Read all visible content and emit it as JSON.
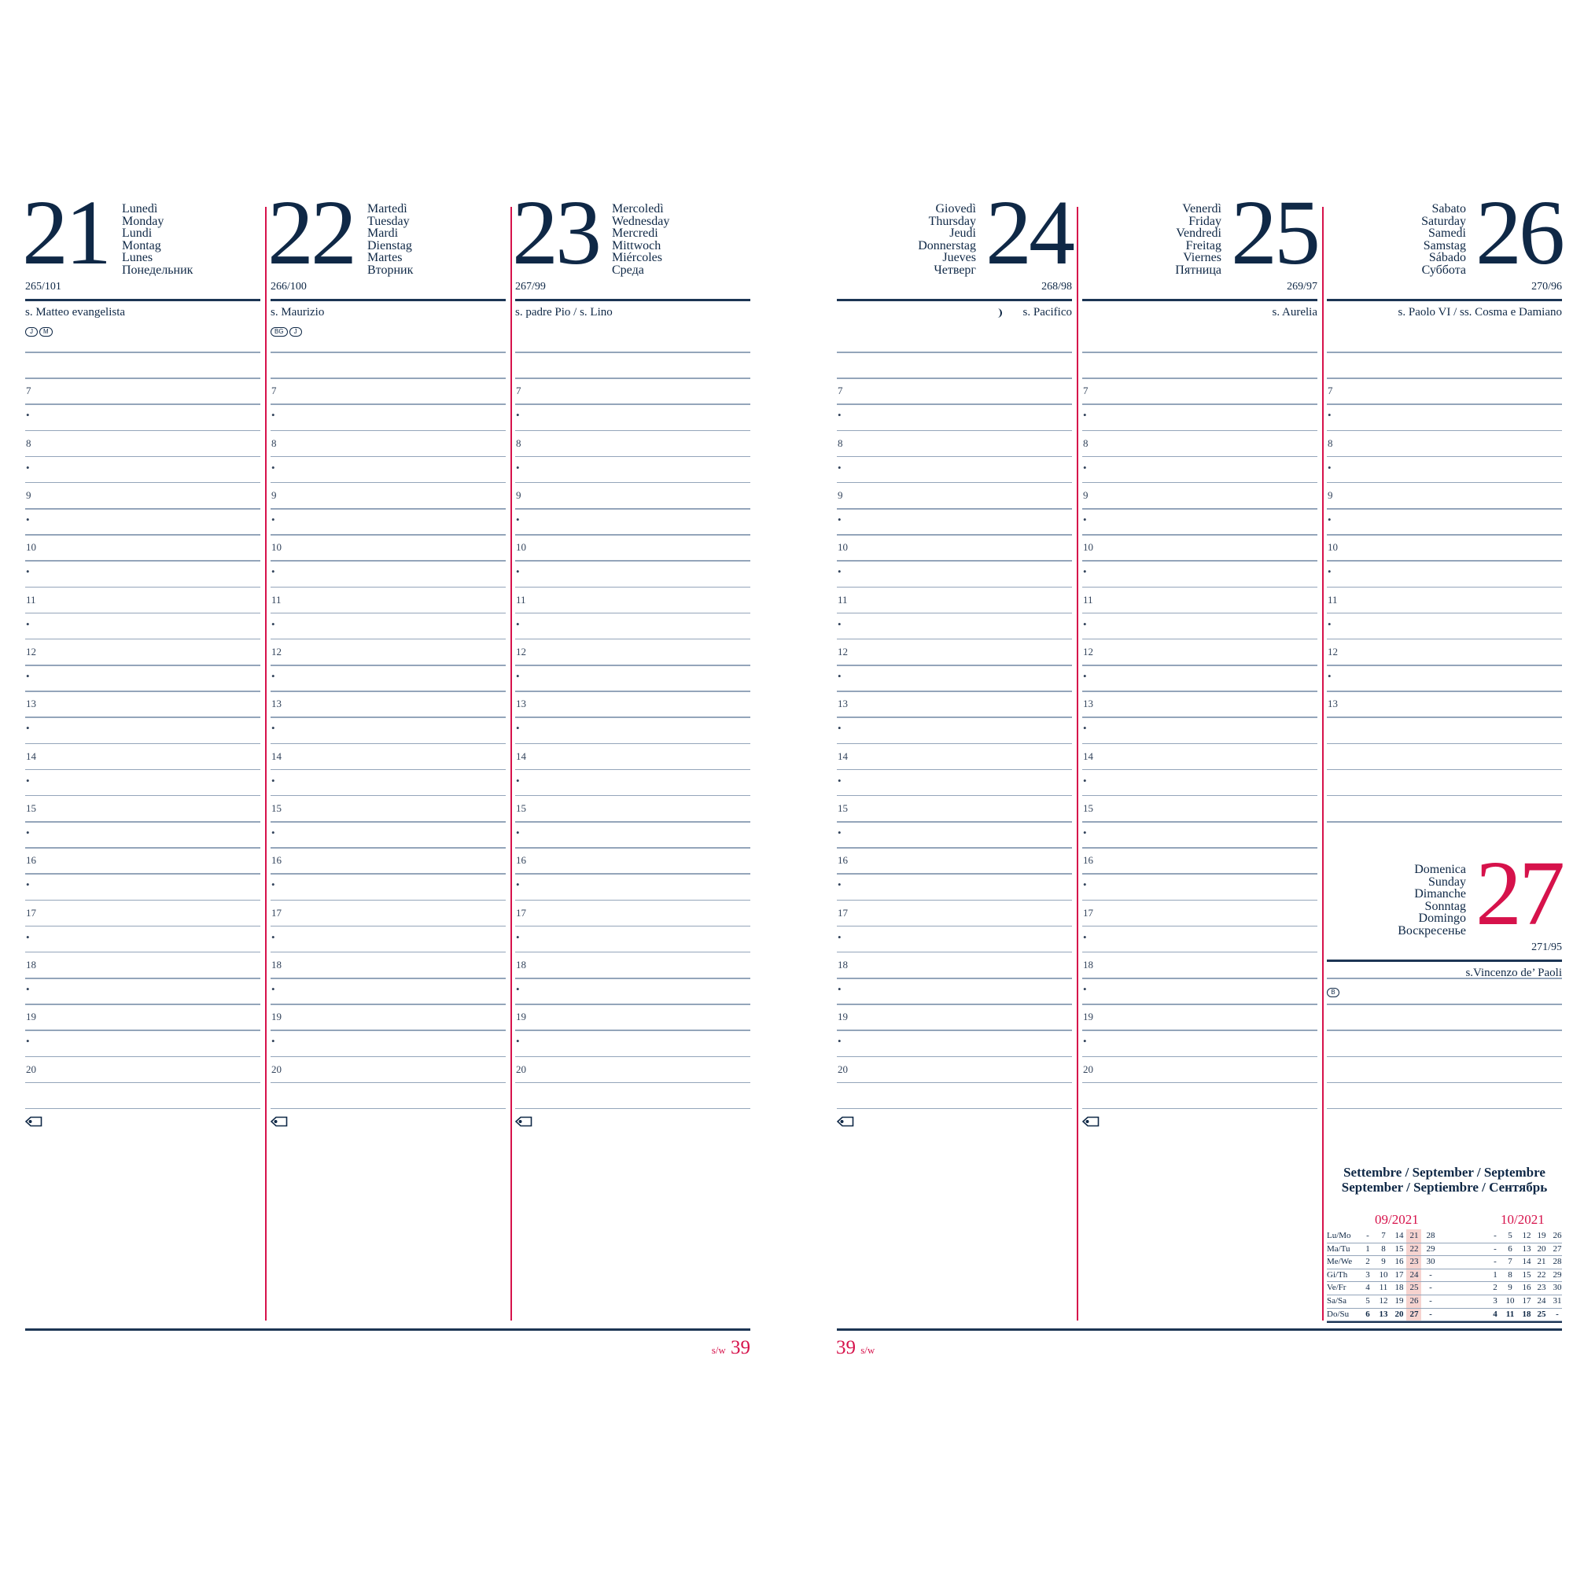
{
  "colors": {
    "navy": "#0f2846",
    "accent": "#d6124b",
    "rule": "#94a5ba",
    "highlight": "#f6d3cf"
  },
  "days": [
    {
      "num": "21",
      "names": [
        "Lunedì",
        "Monday",
        "Lundi",
        "Montag",
        "Lunes",
        "Понедельник"
      ],
      "yearday": "265/101",
      "saint": "s. Matteo evangelista",
      "badges": [
        "J",
        "M"
      ]
    },
    {
      "num": "22",
      "names": [
        "Martedì",
        "Tuesday",
        "Mardi",
        "Dienstag",
        "Martes",
        "Вторник"
      ],
      "yearday": "266/100",
      "saint": "s. Maurizio",
      "badges": [
        "BG",
        "J"
      ]
    },
    {
      "num": "23",
      "names": [
        "Mercoledì",
        "Wednesday",
        "Mercredi",
        "Mittwoch",
        "Miércoles",
        "Среда"
      ],
      "yearday": "267/99",
      "saint": "s. padre Pio / s. Lino",
      "badges": []
    },
    {
      "num": "24",
      "names": [
        "Giovedì",
        "Thursday",
        "Jeudi",
        "Donnerstag",
        "Jueves",
        "Четверг"
      ],
      "yearday": "268/98",
      "saint": "s. Pacifico",
      "badges": [],
      "moon_icon": "moon-first-quarter-icon"
    },
    {
      "num": "25",
      "names": [
        "Venerdì",
        "Friday",
        "Vendredi",
        "Freitag",
        "Viernes",
        "Пятница"
      ],
      "yearday": "269/97",
      "saint": "s. Aurelia",
      "badges": []
    },
    {
      "num": "26",
      "names": [
        "Sabato",
        "Saturday",
        "Samedi",
        "Samstag",
        "Sábado",
        "Суббота"
      ],
      "yearday": "270/96",
      "saint": "s. Paolo VI / ss. Cosma e Damiano",
      "badges": []
    }
  ],
  "sunday": {
    "num": "27",
    "names": [
      "Domenica",
      "Sunday",
      "Dimanche",
      "Sonntag",
      "Domingo",
      "Воскресенье"
    ],
    "yearday": "271/95",
    "saint": "s.Vincenzo de’ Paoli",
    "badges": [
      "B"
    ]
  },
  "hour_rows": [
    "7",
    "•",
    "8",
    "•",
    "9",
    "•",
    "10",
    "•",
    "11",
    "•",
    "12",
    "•",
    "13",
    "•",
    "14",
    "•",
    "15",
    "•",
    "16",
    "•",
    "17",
    "•",
    "18",
    "•",
    "19",
    "•",
    "20"
  ],
  "saturday_last_hour": "13",
  "tag_icon": "price-tag-icon",
  "footer": {
    "week_label": "s/w",
    "week_number": "39"
  },
  "month_panel": {
    "title_lines": [
      "Settembre / September / Septembre",
      "September / Septiembre / Сентябрь"
    ],
    "row_labels": [
      "Lu/Mo",
      "Ma/Tu",
      "Me/We",
      "Gi/Th",
      "Ve/Fr",
      "Sa/Sa",
      "Do/Su"
    ],
    "months": [
      {
        "label": "09/2021",
        "highlight_week": 3,
        "rows": [
          [
            "-",
            "7",
            "14",
            "21",
            "28"
          ],
          [
            "1",
            "8",
            "15",
            "22",
            "29"
          ],
          [
            "2",
            "9",
            "16",
            "23",
            "30"
          ],
          [
            "3",
            "10",
            "17",
            "24",
            "-"
          ],
          [
            "4",
            "11",
            "18",
            "25",
            "-"
          ],
          [
            "5",
            "12",
            "19",
            "26",
            "-"
          ],
          [
            "6",
            "13",
            "20",
            "27",
            "-"
          ]
        ]
      },
      {
        "label": "10/2021",
        "rows": [
          [
            "-",
            "5",
            "12",
            "19",
            "26"
          ],
          [
            "-",
            "6",
            "13",
            "20",
            "27"
          ],
          [
            "-",
            "7",
            "14",
            "21",
            "28"
          ],
          [
            "1",
            "8",
            "15",
            "22",
            "29"
          ],
          [
            "2",
            "9",
            "16",
            "23",
            "30"
          ],
          [
            "3",
            "10",
            "17",
            "24",
            "31"
          ],
          [
            "4",
            "11",
            "18",
            "25",
            "-"
          ]
        ]
      }
    ]
  }
}
